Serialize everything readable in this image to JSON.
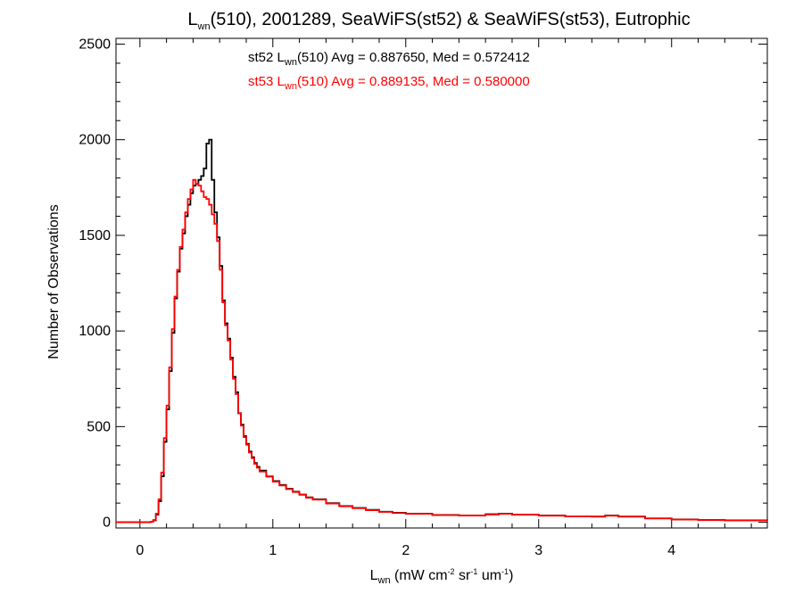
{
  "chart_data": {
    "type": "line",
    "title": {
      "main": "L",
      "main_sub": "wn",
      "rest": "(510), 2001289, SeaWiFS(st52) & SeaWiFS(st53), Eutrophic"
    },
    "xlabel": {
      "main": "L",
      "main_sub": "wn",
      "p1": " (mW cm",
      "s1": "-2",
      "p2": " sr",
      "s2": "-1",
      "p3": " um",
      "s3": "-1",
      "p4": ")"
    },
    "ylabel": "Number of Observations",
    "xlim": [
      -0.18,
      4.72
    ],
    "ylim": [
      -30,
      2530
    ],
    "xticks": [
      0,
      1,
      2,
      3,
      4
    ],
    "yticks": [
      0,
      500,
      1000,
      1500,
      2000,
      2500
    ],
    "annotations": [
      {
        "pre": "st52 L",
        "sub": "wn",
        "post": "(510) Avg = 0.887650, Med = 0.572412",
        "color": "#000000"
      },
      {
        "pre": "st53 L",
        "sub": "wn",
        "post": "(510) Avg = 0.889135, Med = 0.580000",
        "color": "#ff0000"
      }
    ],
    "series": [
      {
        "color": "#000000",
        "x": [
          -0.18,
          0.05,
          0.08,
          0.1,
          0.12,
          0.14,
          0.16,
          0.18,
          0.2,
          0.22,
          0.24,
          0.26,
          0.28,
          0.3,
          0.32,
          0.34,
          0.36,
          0.38,
          0.4,
          0.42,
          0.44,
          0.46,
          0.48,
          0.5,
          0.52,
          0.54,
          0.56,
          0.58,
          0.6,
          0.62,
          0.64,
          0.66,
          0.68,
          0.7,
          0.72,
          0.74,
          0.76,
          0.78,
          0.8,
          0.82,
          0.84,
          0.86,
          0.88,
          0.9,
          0.95,
          1.0,
          1.05,
          1.1,
          1.15,
          1.2,
          1.25,
          1.3,
          1.4,
          1.5,
          1.6,
          1.7,
          1.8,
          1.9,
          2.0,
          2.2,
          2.4,
          2.6,
          2.7,
          2.8,
          3.0,
          3.2,
          3.4,
          3.5,
          3.6,
          3.8,
          4.0,
          4.2,
          4.4,
          4.72
        ],
        "y": [
          0,
          0,
          2,
          10,
          40,
          110,
          240,
          420,
          590,
          790,
          990,
          1170,
          1310,
          1430,
          1510,
          1600,
          1660,
          1720,
          1760,
          1770,
          1790,
          1810,
          1850,
          1980,
          2000,
          1790,
          1620,
          1490,
          1340,
          1160,
          1040,
          960,
          860,
          760,
          680,
          570,
          510,
          450,
          410,
          370,
          340,
          310,
          290,
          270,
          240,
          215,
          195,
          175,
          160,
          145,
          130,
          120,
          100,
          85,
          75,
          65,
          55,
          50,
          45,
          38,
          35,
          42,
          45,
          40,
          35,
          30,
          30,
          35,
          30,
          20,
          15,
          12,
          10,
          8
        ]
      },
      {
        "color": "#ff0000",
        "x": [
          -0.18,
          0.05,
          0.08,
          0.1,
          0.12,
          0.14,
          0.16,
          0.18,
          0.2,
          0.22,
          0.24,
          0.26,
          0.28,
          0.3,
          0.32,
          0.34,
          0.36,
          0.38,
          0.4,
          0.42,
          0.44,
          0.46,
          0.48,
          0.5,
          0.52,
          0.54,
          0.56,
          0.58,
          0.6,
          0.62,
          0.64,
          0.66,
          0.68,
          0.7,
          0.72,
          0.74,
          0.76,
          0.78,
          0.8,
          0.82,
          0.84,
          0.86,
          0.88,
          0.9,
          0.95,
          1.0,
          1.05,
          1.1,
          1.15,
          1.2,
          1.25,
          1.3,
          1.4,
          1.5,
          1.6,
          1.7,
          1.8,
          1.9,
          2.0,
          2.2,
          2.4,
          2.6,
          2.7,
          2.8,
          3.0,
          3.2,
          3.4,
          3.5,
          3.6,
          3.8,
          4.0,
          4.2,
          4.4,
          4.72
        ],
        "y": [
          0,
          0,
          2,
          12,
          45,
          120,
          260,
          440,
          610,
          810,
          1010,
          1180,
          1320,
          1440,
          1530,
          1620,
          1690,
          1740,
          1790,
          1770,
          1760,
          1730,
          1700,
          1690,
          1660,
          1610,
          1560,
          1470,
          1320,
          1150,
          1030,
          950,
          850,
          750,
          670,
          570,
          505,
          445,
          405,
          365,
          335,
          305,
          285,
          265,
          238,
          212,
          192,
          173,
          158,
          143,
          128,
          118,
          98,
          83,
          73,
          63,
          54,
          48,
          44,
          37,
          35,
          40,
          44,
          40,
          34,
          30,
          29,
          34,
          29,
          20,
          14,
          11,
          9,
          7
        ]
      }
    ]
  }
}
